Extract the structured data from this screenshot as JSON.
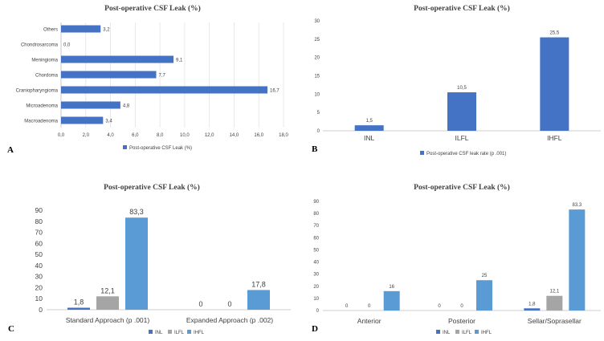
{
  "chart_data": [
    {
      "panel": "A",
      "type": "bar",
      "orientation": "horizontal",
      "title": "Post-operative CSF Leak (%)",
      "categories": [
        "Others",
        "Chondrosarcoma",
        "Meningioma",
        "Chordoma",
        "Craniopharyngioma",
        "Microadenoma",
        "Macroadenoma"
      ],
      "series": [
        {
          "name": "Post-operative CSF Leak (%)",
          "values": [
            3.2,
            0.0,
            9.1,
            7.7,
            16.7,
            4.8,
            3.4
          ],
          "labels": [
            "3,2",
            "0,0",
            "9,1",
            "7,7",
            "16,7",
            "4,8",
            "3,4"
          ],
          "color": "#4472c4"
        }
      ],
      "xlim": [
        0,
        18
      ],
      "xticks": [
        "0,0",
        "2,0",
        "4,0",
        "6,0",
        "8,0",
        "10,0",
        "12,0",
        "14,0",
        "16,0",
        "18,0"
      ],
      "grid": true,
      "legend": "bottom"
    },
    {
      "panel": "B",
      "type": "bar",
      "title": "Post-operative CSF Leak (%)",
      "categories": [
        "INL",
        "ILFL",
        "IHFL"
      ],
      "series": [
        {
          "name": "Post-operative CSF leak rate (p .001)",
          "values": [
            1.5,
            10.5,
            25.5
          ],
          "labels": [
            "1,5",
            "10,5",
            "25,5"
          ],
          "color": "#4472c4"
        }
      ],
      "ylim": [
        0,
        30
      ],
      "yticks": [
        "0",
        "5",
        "10",
        "15",
        "20",
        "25",
        "30"
      ],
      "grid": false,
      "legend": "bottom"
    },
    {
      "panel": "C",
      "type": "bar",
      "title": "Post-operative CSF Leak (%)",
      "categories": [
        "Standard Approach (p .001)",
        "Expanded Approach (p .002)"
      ],
      "series": [
        {
          "name": "INL",
          "values": [
            1.8,
            0
          ],
          "labels": [
            "1,8",
            "0"
          ],
          "color": "#4472c4"
        },
        {
          "name": "ILFL",
          "values": [
            12.1,
            0
          ],
          "labels": [
            "12,1",
            "0"
          ],
          "color": "#a5a5a5"
        },
        {
          "name": "IHFL",
          "values": [
            83.3,
            17.8
          ],
          "labels": [
            "83,3",
            "17,8"
          ],
          "color": "#5b9bd5"
        }
      ],
      "ylim": [
        0,
        90
      ],
      "yticks": [
        "0",
        "10",
        "20",
        "30",
        "40",
        "50",
        "60",
        "70",
        "80",
        "90"
      ],
      "grid": false,
      "legend": "bottom"
    },
    {
      "panel": "D",
      "type": "bar",
      "title": "Post-operative CSF Leak (%)",
      "categories": [
        "Anterior",
        "Posterior",
        "Sellar/Soprasellar"
      ],
      "series": [
        {
          "name": "INL",
          "values": [
            0,
            0,
            1.8
          ],
          "labels": [
            "0",
            "0",
            "1,8"
          ],
          "color": "#4472c4"
        },
        {
          "name": "ILFL",
          "values": [
            0,
            0,
            12.1
          ],
          "labels": [
            "0",
            "0",
            "12,1"
          ],
          "color": "#a5a5a5"
        },
        {
          "name": "IHFL",
          "values": [
            16,
            25,
            83.3
          ],
          "labels": [
            "16",
            "25",
            "83,3"
          ],
          "color": "#5b9bd5"
        }
      ],
      "ylim": [
        0,
        90
      ],
      "yticks": [
        "0",
        "10",
        "20",
        "30",
        "40",
        "50",
        "60",
        "70",
        "80",
        "90"
      ],
      "grid": false,
      "legend": "bottom"
    }
  ]
}
